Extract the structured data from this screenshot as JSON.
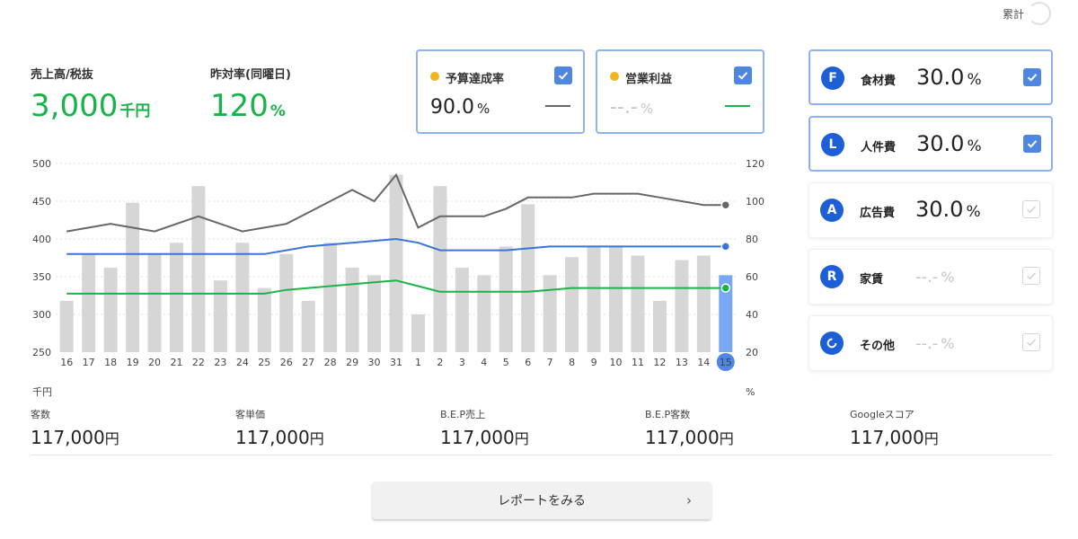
{
  "header": {
    "cumulative_label": "累計"
  },
  "kpis": {
    "sales": {
      "label": "売上高/税抜",
      "value": "3,000",
      "unit": "千円"
    },
    "yoy": {
      "label": "昨対率(同曜日)",
      "value": "120",
      "unit": "%"
    }
  },
  "cards": {
    "budget": {
      "label": "予算達成率",
      "value": "90.0",
      "unit": "%",
      "checked": true,
      "line_color": "#666666"
    },
    "profit": {
      "label": "営業利益",
      "value": "--.-",
      "unit": "%",
      "checked": true,
      "line_color": "#1ab34a"
    }
  },
  "ratios": [
    {
      "letter": "F",
      "label": "食材費",
      "value": "30.0",
      "unit": "%",
      "checked": true
    },
    {
      "letter": "L",
      "label": "人件費",
      "value": "30.0",
      "unit": "%",
      "checked": true
    },
    {
      "letter": "A",
      "label": "広告費",
      "value": "30.0",
      "unit": "%",
      "checked": false
    },
    {
      "letter": "R",
      "label": "家賃",
      "value": "--.-",
      "unit": "%",
      "checked": false
    },
    {
      "letter": "",
      "label": "その他",
      "value": "--.-",
      "unit": "%",
      "checked": false
    }
  ],
  "chart_data": {
    "type": "bar",
    "categories": [
      "16",
      "17",
      "18",
      "19",
      "20",
      "21",
      "22",
      "23",
      "24",
      "25",
      "26",
      "27",
      "28",
      "29",
      "30",
      "31",
      "1",
      "2",
      "3",
      "4",
      "5",
      "6",
      "7",
      "8",
      "9",
      "10",
      "11",
      "12",
      "13",
      "14",
      "15"
    ],
    "selected_index": 30,
    "left_axis": {
      "unit": "千円",
      "min": 250,
      "max": 500,
      "ticks": [
        250,
        300,
        350,
        400,
        450,
        500
      ]
    },
    "right_axis": {
      "unit": "%",
      "min": 20,
      "max": 120,
      "ticks": [
        20,
        40,
        60,
        80,
        100,
        120
      ]
    },
    "grid": true,
    "series": [
      {
        "type": "bar",
        "axis": "left",
        "color": "#d6d6d6",
        "selected_color": "#7aa7f2",
        "values": [
          318,
          380,
          362,
          448,
          380,
          395,
          470,
          345,
          395,
          335,
          380,
          318,
          395,
          362,
          352,
          485,
          300,
          470,
          362,
          352,
          390,
          446,
          352,
          376,
          390,
          390,
          378,
          318,
          372,
          378,
          352
        ]
      },
      {
        "type": "line",
        "axis": "right",
        "color": "#666666",
        "values": [
          84,
          86,
          88,
          86,
          84,
          88,
          92,
          88,
          84,
          86,
          88,
          94,
          100,
          106,
          100,
          114,
          86,
          92,
          92,
          92,
          96,
          102,
          102,
          102,
          104,
          104,
          104,
          102,
          100,
          98,
          98
        ]
      },
      {
        "type": "line",
        "axis": "right",
        "color": "#3b73d9",
        "values": [
          72,
          72,
          72,
          72,
          72,
          72,
          72,
          72,
          72,
          72,
          74,
          76,
          77,
          78,
          79,
          80,
          78,
          74,
          74,
          74,
          74,
          75,
          76,
          76,
          76,
          76,
          76,
          76,
          76,
          76,
          76
        ]
      },
      {
        "type": "line",
        "axis": "right",
        "color": "#1ab34a",
        "values": [
          51,
          51,
          51,
          51,
          51,
          51,
          51,
          51,
          51,
          51,
          53,
          54,
          55,
          56,
          57,
          58,
          55,
          52,
          52,
          52,
          52,
          52,
          53,
          54,
          54,
          54,
          54,
          54,
          54,
          54,
          54
        ]
      }
    ]
  },
  "stats": [
    {
      "label": "客数",
      "value": "117,000",
      "unit": "円"
    },
    {
      "label": "客単価",
      "value": "117,000",
      "unit": "円"
    },
    {
      "label": "B.E.P売上",
      "value": "117,000",
      "unit": "円"
    },
    {
      "label": "B.E.P客数",
      "value": "117,000",
      "unit": "円"
    },
    {
      "label": "Googleスコア",
      "value": "117,000",
      "unit": "円"
    }
  ],
  "report_button": {
    "label": "レポートをみる"
  },
  "icons": {
    "checkmark": "checkmark-icon",
    "chevron": "chevron-right-icon",
    "other_ratio": "refresh-circle-icon"
  }
}
